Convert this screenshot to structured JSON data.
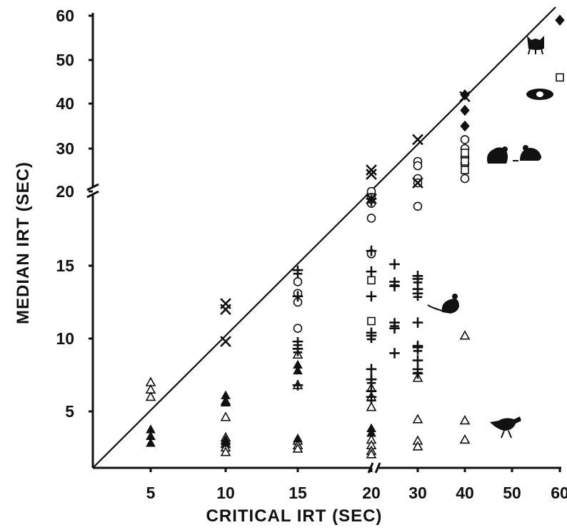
{
  "chart_data": {
    "type": "scatter",
    "xlabel": "CRITICAL  IRT  (SEC)",
    "ylabel": "MEDIAN  IRT  (SEC)",
    "x_ticks": [
      "5",
      "10",
      "15",
      "20",
      "30",
      "40",
      "50",
      "60"
    ],
    "y_ticks": [
      "5",
      "10",
      "15",
      "20",
      "30",
      "40",
      "50",
      "60"
    ],
    "x_axis_break": "between 20 and 30",
    "y_axis_break": "between 20 and 30",
    "xlim": [
      0,
      60
    ],
    "ylim": [
      0,
      60
    ],
    "reference_line": "y = x",
    "grid": false,
    "legend": "none; species indicated by animal silhouettes",
    "animal_icons": [
      "rat-icon",
      "pigeon-icon",
      "cat-icon",
      "guinea-pig-icon",
      "mouse-icon",
      "rabbit-icon"
    ],
    "series": [
      {
        "marker": "open-triangle",
        "points": [
          [
            5,
            7
          ],
          [
            5,
            6.5
          ],
          [
            5,
            6
          ],
          [
            10,
            5.7
          ],
          [
            10,
            4.5
          ],
          [
            10,
            2.7
          ],
          [
            10,
            2.4
          ],
          [
            10,
            2.1
          ],
          [
            10,
            1.8
          ],
          [
            10,
            1.4
          ],
          [
            15,
            8.9
          ],
          [
            15,
            6.8
          ],
          [
            15,
            2.4
          ],
          [
            15,
            2
          ],
          [
            15,
            1.7
          ],
          [
            20,
            6.6
          ],
          [
            20,
            6
          ],
          [
            20,
            5.3
          ],
          [
            20,
            2.5
          ],
          [
            20,
            2
          ],
          [
            20,
            1.5
          ],
          [
            20,
            1.2
          ],
          [
            30,
            7.3
          ],
          [
            30,
            4.3
          ],
          [
            30,
            2.4
          ],
          [
            30,
            1.9
          ],
          [
            40,
            10.2
          ],
          [
            40,
            4.2
          ],
          [
            40,
            2.5
          ]
        ]
      },
      {
        "marker": "filled-triangle",
        "points": [
          [
            5,
            3.4
          ],
          [
            5,
            2.8
          ],
          [
            5,
            2.2
          ],
          [
            10,
            6.1
          ],
          [
            10,
            5.6
          ],
          [
            10,
            2.5
          ],
          [
            10,
            2.2
          ],
          [
            15,
            8.2
          ],
          [
            15,
            7.8
          ],
          [
            15,
            2.6
          ],
          [
            20,
            3.5
          ],
          [
            20,
            3.1
          ]
        ]
      },
      {
        "marker": "open-circle",
        "points": [
          [
            15,
            13.9
          ],
          [
            15,
            13.1
          ],
          [
            15,
            12.5
          ],
          [
            15,
            10.7
          ],
          [
            20,
            20
          ],
          [
            20,
            19.6
          ],
          [
            20,
            19.2
          ],
          [
            20,
            18.2
          ],
          [
            20,
            15.8
          ],
          [
            30,
            27
          ],
          [
            30,
            26
          ],
          [
            30,
            23
          ],
          [
            30,
            22
          ],
          [
            30,
            19
          ],
          [
            40,
            32
          ],
          [
            40,
            30
          ],
          [
            40,
            28
          ],
          [
            40,
            26.5
          ],
          [
            40,
            23
          ]
        ]
      },
      {
        "marker": "open-square",
        "points": [
          [
            20,
            14
          ],
          [
            20,
            11.2
          ],
          [
            40,
            29
          ],
          [
            40,
            27
          ],
          [
            40,
            25
          ],
          [
            60,
            46
          ]
        ]
      },
      {
        "marker": "plus",
        "points": [
          [
            15,
            12.9
          ],
          [
            15,
            6.8
          ],
          [
            20,
            16
          ],
          [
            20,
            14.6
          ],
          [
            20,
            12.9
          ],
          [
            20,
            10.4
          ],
          [
            20,
            7.9
          ],
          [
            20,
            7.2
          ],
          [
            20,
            6.4
          ],
          [
            25,
            15.1
          ],
          [
            25,
            13.6
          ],
          [
            25,
            10.7
          ],
          [
            25,
            9
          ],
          [
            30,
            14.3
          ],
          [
            30,
            13.4
          ],
          [
            30,
            11.1
          ],
          [
            30,
            9.5
          ],
          [
            30,
            8.5
          ],
          [
            30,
            7.6
          ]
        ]
      },
      {
        "marker": "double-cross",
        "points": [
          [
            15,
            14.6
          ],
          [
            15,
            9.7
          ],
          [
            15,
            9.2
          ],
          [
            20,
            19.4
          ],
          [
            20,
            10.1
          ],
          [
            20,
            7.1
          ],
          [
            20,
            5.9
          ],
          [
            25,
            13.8
          ],
          [
            25,
            11
          ],
          [
            30,
            14
          ],
          [
            30,
            13
          ],
          [
            30,
            9.3
          ],
          [
            30,
            7.8
          ]
        ]
      },
      {
        "marker": "x",
        "points": [
          [
            10,
            12.4
          ],
          [
            10,
            12
          ],
          [
            10,
            9.8
          ],
          [
            20,
            25
          ],
          [
            20,
            24
          ],
          [
            20,
            19.5
          ],
          [
            30,
            32
          ],
          [
            30,
            22
          ],
          [
            40,
            41.6
          ]
        ]
      },
      {
        "marker": "filled-diamond",
        "points": [
          [
            40,
            42
          ],
          [
            40,
            38.5
          ],
          [
            40,
            35
          ],
          [
            60,
            59
          ]
        ]
      }
    ]
  }
}
